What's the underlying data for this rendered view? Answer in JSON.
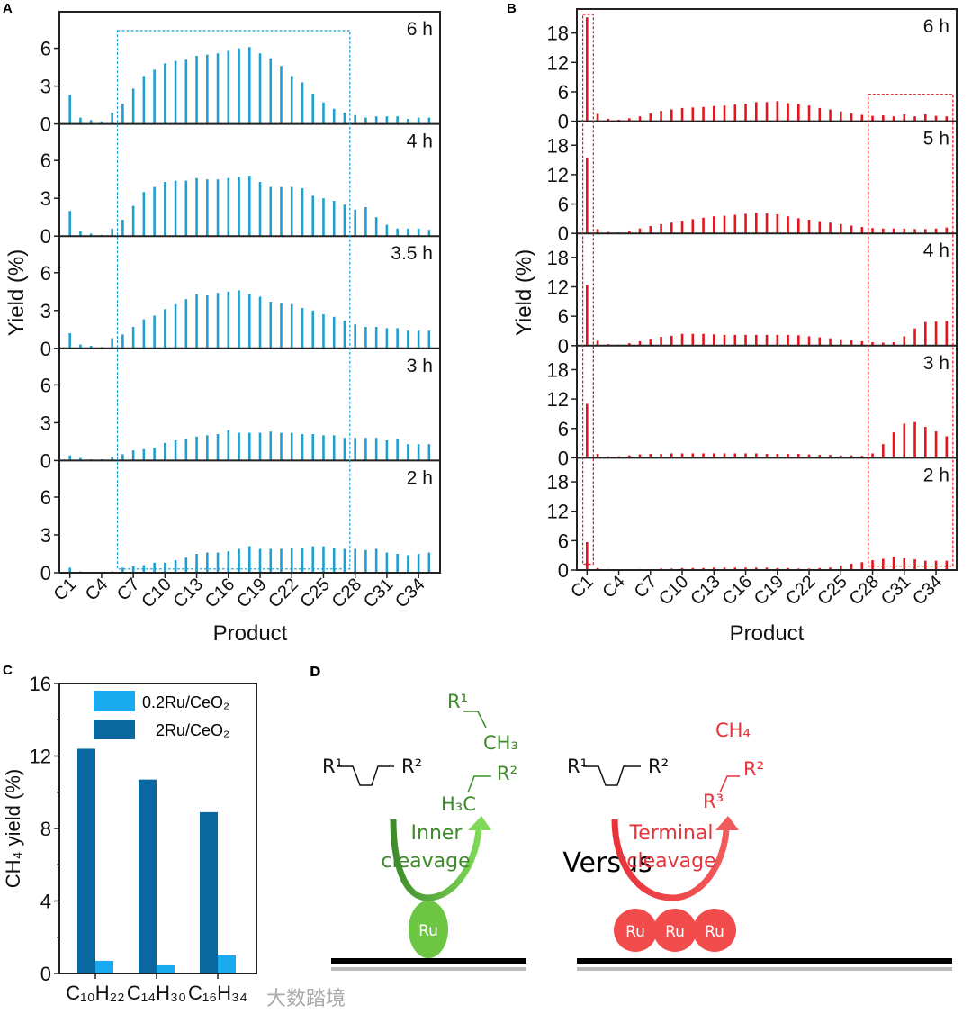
{
  "colors": {
    "panel_a": "#1f9fcf",
    "panel_b": "#e8141c",
    "c_light": "#1aaaf0",
    "c_dark": "#08689f",
    "green": "#3d8b2a",
    "green_fill": "#6cc644",
    "red": "#e8323a",
    "red_fill": "#f24b4b"
  },
  "watermark": "大数踏境",
  "chart_data": [
    {
      "id": "A",
      "panel_letter": "A",
      "type": "bar",
      "ylabel": "Yield (%)",
      "xlabel": "Product",
      "categories": [
        "C1",
        "C2",
        "C3",
        "C4",
        "C5",
        "C6",
        "C7",
        "C8",
        "C9",
        "C10",
        "C11",
        "C12",
        "C13",
        "C14",
        "C15",
        "C16",
        "C17",
        "C18",
        "C19",
        "C20",
        "C21",
        "C22",
        "C23",
        "C24",
        "C25",
        "C26",
        "C27",
        "C28",
        "C29",
        "C30",
        "C31",
        "C32",
        "C33",
        "C34",
        "C35"
      ],
      "tick_labels": [
        "C1",
        "C4",
        "C7",
        "C10",
        "C13",
        "C16",
        "C19",
        "C22",
        "C25",
        "C28",
        "C31",
        "C34"
      ],
      "yticks": [
        "0",
        "3",
        "6"
      ],
      "ylim": [
        0,
        8.9
      ],
      "highlight_box": {
        "from_category": 5.5,
        "to_category": 27.5,
        "ymax": 7.4
      },
      "series": [
        {
          "name": "6 h",
          "values": [
            2.3,
            0.5,
            0.3,
            0.2,
            0.9,
            1.6,
            2.8,
            3.8,
            4.3,
            4.8,
            5.0,
            5.1,
            5.4,
            5.5,
            5.6,
            5.8,
            6.0,
            6.1,
            5.6,
            5.2,
            4.6,
            3.8,
            3.3,
            2.4,
            1.7,
            1.2,
            0.9,
            0.7,
            0.5,
            0.6,
            0.6,
            0.6,
            0.4,
            0.5,
            0.5
          ]
        },
        {
          "name": "4 h",
          "values": [
            2.0,
            0.4,
            0.2,
            0.1,
            0.6,
            1.3,
            2.4,
            3.5,
            3.9,
            4.3,
            4.4,
            4.4,
            4.6,
            4.5,
            4.5,
            4.6,
            4.7,
            4.8,
            4.3,
            3.9,
            3.9,
            3.9,
            3.8,
            3.2,
            3.0,
            2.8,
            2.5,
            2.1,
            2.3,
            1.5,
            0.9,
            0.6,
            0.6,
            0.6,
            0.5
          ]
        },
        {
          "name": "3.5 h",
          "values": [
            1.2,
            0.3,
            0.2,
            0.1,
            0.8,
            1.1,
            1.7,
            2.3,
            2.6,
            3.1,
            3.5,
            3.9,
            4.3,
            4.2,
            4.4,
            4.5,
            4.6,
            4.3,
            4.1,
            3.7,
            3.6,
            3.5,
            3.2,
            3.0,
            2.7,
            2.5,
            2.2,
            1.9,
            1.7,
            1.7,
            1.6,
            1.6,
            1.4,
            1.4,
            1.4
          ]
        },
        {
          "name": "3 h",
          "values": [
            0.4,
            0.2,
            0.1,
            0.1,
            0.3,
            0.5,
            0.8,
            0.9,
            1.0,
            1.4,
            1.6,
            1.7,
            1.9,
            2.0,
            2.1,
            2.4,
            2.2,
            2.2,
            2.2,
            2.3,
            2.2,
            2.2,
            2.1,
            2.1,
            2.0,
            2.0,
            1.8,
            1.8,
            1.8,
            1.8,
            1.6,
            1.7,
            1.3,
            1.3,
            1.3
          ]
        },
        {
          "name": "2 h",
          "values": [
            0.4,
            0.1,
            0.05,
            0.05,
            0.1,
            0.4,
            0.5,
            0.6,
            0.8,
            0.8,
            1.0,
            1.2,
            1.5,
            1.6,
            1.6,
            1.7,
            1.9,
            2.1,
            1.9,
            1.9,
            1.9,
            2.0,
            2.0,
            2.1,
            2.1,
            2.0,
            1.9,
            1.9,
            1.8,
            1.9,
            1.6,
            1.5,
            1.4,
            1.5,
            1.6
          ]
        }
      ]
    },
    {
      "id": "B",
      "panel_letter": "B",
      "type": "bar",
      "ylabel": "Yield (%)",
      "xlabel": "Product",
      "categories": [
        "C1",
        "C2",
        "C3",
        "C4",
        "C5",
        "C6",
        "C7",
        "C8",
        "C9",
        "C10",
        "C11",
        "C12",
        "C13",
        "C14",
        "C15",
        "C16",
        "C17",
        "C18",
        "C19",
        "C20",
        "C21",
        "C22",
        "C23",
        "C24",
        "C25",
        "C26",
        "C27",
        "C28",
        "C29",
        "C30",
        "C31",
        "C32",
        "C33",
        "C34",
        "C35"
      ],
      "tick_labels": [
        "C1",
        "C4",
        "C7",
        "C10",
        "C13",
        "C16",
        "C19",
        "C22",
        "C25",
        "C28",
        "C31",
        "C34"
      ],
      "yticks": [
        "0",
        "6",
        "12",
        "18"
      ],
      "ylim": [
        0,
        22.9
      ],
      "highlight_boxes": [
        {
          "from_category": 0.6,
          "to_category": 1.6,
          "ymax": 21.8,
          "ymin_bottom": 1.2
        },
        {
          "from_category": 27.6,
          "to_category": 35.6,
          "ymax": 5.5,
          "ymin_bottom": 0.8
        }
      ],
      "series": [
        {
          "name": "6 h",
          "values": [
            21.2,
            1.5,
            0.5,
            0.3,
            0.6,
            1.0,
            1.6,
            2.1,
            2.4,
            2.7,
            2.8,
            2.9,
            3.1,
            3.2,
            3.4,
            3.6,
            3.9,
            3.9,
            4.1,
            3.7,
            3.5,
            3.2,
            2.7,
            2.4,
            2.0,
            1.6,
            1.3,
            1.1,
            1.2,
            1.0,
            1.4,
            1.0,
            1.4,
            1.1,
            1.0
          ]
        },
        {
          "name": "5 h",
          "values": [
            15.4,
            0.9,
            0.3,
            0.2,
            0.6,
            1.0,
            1.5,
            1.9,
            2.2,
            2.6,
            2.9,
            3.2,
            3.5,
            3.6,
            3.8,
            4.0,
            4.2,
            4.1,
            3.9,
            3.5,
            3.1,
            2.8,
            2.5,
            2.2,
            1.9,
            1.6,
            1.3,
            1.1,
            1.0,
            1.0,
            1.0,
            0.9,
            0.9,
            1.0,
            1.2
          ]
        },
        {
          "name": "4 h",
          "values": [
            12.4,
            1.0,
            0.3,
            0.2,
            0.5,
            0.9,
            1.4,
            1.8,
            2.0,
            2.4,
            2.4,
            2.4,
            2.3,
            2.2,
            2.2,
            2.2,
            2.2,
            2.2,
            2.2,
            2.2,
            2.1,
            1.9,
            1.7,
            1.5,
            1.3,
            1.1,
            0.9,
            0.7,
            0.6,
            0.7,
            1.9,
            3.5,
            4.8,
            4.9,
            5.0
          ]
        },
        {
          "name": "3 h",
          "values": [
            11.0,
            0.8,
            0.3,
            0.3,
            0.5,
            0.7,
            0.8,
            0.8,
            0.9,
            0.9,
            0.9,
            0.9,
            0.9,
            0.9,
            0.9,
            0.9,
            0.9,
            0.8,
            0.8,
            0.8,
            0.8,
            0.7,
            0.6,
            0.6,
            0.5,
            0.5,
            0.4,
            0.9,
            2.8,
            5.2,
            7.0,
            7.3,
            6.3,
            5.4,
            4.4
          ]
        },
        {
          "name": "2 h",
          "values": [
            5.7,
            0.4,
            0.2,
            0.1,
            0.1,
            0.2,
            0.2,
            0.3,
            0.3,
            0.4,
            0.4,
            0.4,
            0.5,
            0.5,
            0.5,
            0.5,
            0.5,
            0.5,
            0.4,
            0.4,
            0.3,
            0.3,
            0.4,
            0.5,
            0.9,
            1.3,
            1.6,
            2.0,
            2.3,
            2.7,
            2.4,
            2.2,
            1.9,
            1.9,
            1.9
          ]
        }
      ]
    },
    {
      "id": "C",
      "panel_letter": "C",
      "type": "bar",
      "ylabel": "CH₄ yield (%)",
      "xlabel": "",
      "categories": [
        "C₁₀H₂₂",
        "C₁₄H₃₀",
        "C₁₆H₃₄"
      ],
      "yticks": [
        "0",
        "4",
        "8",
        "12",
        "16"
      ],
      "ylim": [
        0,
        16
      ],
      "legend_position": "top-right",
      "series": [
        {
          "name": "2Ru/CeO₂",
          "values": [
            12.4,
            10.7,
            8.9
          ]
        },
        {
          "name": "0.2Ru/CeO₂",
          "values": [
            0.7,
            0.45,
            1.0
          ]
        }
      ],
      "legend": [
        "0.2Ru/CeO₂",
        "2Ru/CeO₂"
      ]
    }
  ],
  "diagram": {
    "panel_letter": "D",
    "left": {
      "reactant_r1": "R¹",
      "reactant_r2": "R²",
      "product1_r": "R¹",
      "product1_ch3": "CH₃",
      "product2_h3c": "H₃C",
      "product2_r": "R²",
      "arrow_line1": "Inner",
      "arrow_line2": "cleavage",
      "site": "Ru"
    },
    "versus": "Versus",
    "right": {
      "reactant_r1": "R¹",
      "reactant_r2": "R²",
      "product_ch4": "CH₄",
      "product_r3": "R³",
      "product_r2": "R²",
      "arrow_line1": "Terminal",
      "arrow_line2": "cleavage",
      "sites": [
        "Ru",
        "Ru",
        "Ru"
      ]
    }
  }
}
